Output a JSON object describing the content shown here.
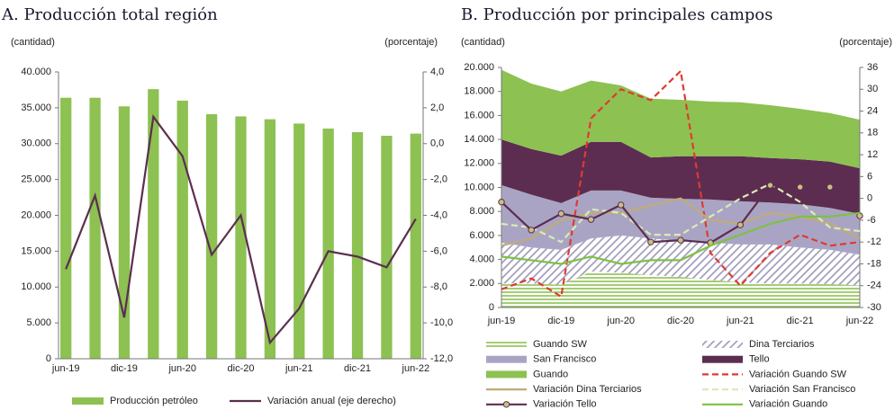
{
  "chart_data": [
    {
      "type": "bar-line",
      "title": "A. Producción total región",
      "y_label": "(cantidad)",
      "y2_label": "(porcentaje)",
      "categories": [
        "jun-19",
        null,
        "dic-19",
        null,
        "jun-20",
        null,
        "dic-20",
        null,
        "jun-21",
        null,
        "dic-21",
        null,
        "jun-22"
      ],
      "ylim": [
        0,
        40000
      ],
      "yticks": [
        0,
        {
          "value": 5000,
          "label": "5.000"
        },
        {
          "value": 10000,
          "label": "10.000"
        },
        {
          "value": 15000,
          "label": "15.000"
        },
        {
          "value": 20000,
          "label": "20.000"
        },
        {
          "value": 25000,
          "label": "25.000"
        },
        {
          "value": 30000,
          "label": "30.000"
        },
        {
          "value": 35000,
          "label": "35.000"
        },
        {
          "value": 40000,
          "label": "40.000"
        }
      ],
      "y2lim": [
        -12,
        4
      ],
      "y2ticks": [
        {
          "value": -12,
          "label": "-12,0"
        },
        {
          "value": -10,
          "label": "-10,0"
        },
        {
          "value": -8,
          "label": "-8,0"
        },
        {
          "value": -6,
          "label": "-6,0"
        },
        {
          "value": -4,
          "label": "-4,0"
        },
        {
          "value": -2,
          "label": "-2,0"
        },
        {
          "value": 0,
          "label": "0,0"
        },
        {
          "value": 2,
          "label": "2,0"
        },
        {
          "value": 4,
          "label": "4,0"
        }
      ],
      "series": [
        {
          "name": "Producción petróleo",
          "type": "bar",
          "color": "#8dc152",
          "values": [
            36400,
            36400,
            35200,
            37600,
            36000,
            34100,
            33800,
            33400,
            32800,
            32100,
            31600,
            31100,
            31400
          ]
        },
        {
          "name": "Variación anual (eje derecho)",
          "type": "line",
          "axis": "y2",
          "color": "#5b2e4f",
          "values": [
            -7.0,
            -2.9,
            -9.7,
            1.5,
            -0.7,
            -6.2,
            -4.0,
            -11.1,
            -9.2,
            -6.0,
            -6.3,
            -6.9,
            -4.2
          ]
        }
      ]
    },
    {
      "type": "stacked-area-line",
      "title": "B. Producción por principales  campos",
      "y_label": "(cantidad)",
      "y2_label": "(porcentaje)",
      "categories": [
        "jun-19",
        null,
        "dic-19",
        null,
        "jun-20",
        null,
        "dic-20",
        null,
        "jun-21",
        null,
        "dic-21",
        null,
        "jun-22"
      ],
      "ylim": [
        0,
        20000
      ],
      "yticks": [
        0,
        {
          "value": 2000,
          "label": "2.000"
        },
        {
          "value": 4000,
          "label": "4.000"
        },
        {
          "value": 6000,
          "label": "6.000"
        },
        {
          "value": 8000,
          "label": "8.000"
        },
        {
          "value": 10000,
          "label": "10.000"
        },
        {
          "value": 12000,
          "label": "12.000"
        },
        {
          "value": 14000,
          "label": "14.000"
        },
        {
          "value": 16000,
          "label": "16.000"
        },
        {
          "value": 18000,
          "label": "18.000"
        },
        {
          "value": 20000,
          "label": "20.000"
        }
      ],
      "y2lim": [
        -30,
        36
      ],
      "y2ticks": [
        -30,
        -24,
        -18,
        -12,
        -6,
        0,
        6,
        12,
        18,
        24,
        30,
        36
      ],
      "series": [
        {
          "name": "Guando SW",
          "type": "area",
          "color": "#8dc152",
          "pattern": "horizontal-lines",
          "values": [
            2000,
            2000,
            1900,
            3000,
            2900,
            2700,
            2550,
            2300,
            2100,
            2000,
            2000,
            1950,
            1850
          ]
        },
        {
          "name": "Dina Terciarios",
          "type": "area",
          "color": "#9a96b8",
          "pattern": "diagonal-hatch",
          "values": [
            3400,
            3000,
            2900,
            2750,
            3100,
            3050,
            3000,
            3100,
            3150,
            3250,
            3000,
            2850,
            2550
          ]
        },
        {
          "name": "San Francisco",
          "type": "area",
          "color": "#aaa4c4",
          "values": [
            4800,
            4400,
            3900,
            4000,
            3750,
            3400,
            3500,
            3600,
            3600,
            3500,
            3600,
            3500,
            3400
          ]
        },
        {
          "name": "Tello",
          "type": "area",
          "color": "#5c2d50",
          "values": [
            3800,
            3800,
            3950,
            4050,
            4050,
            3350,
            3550,
            3600,
            3750,
            3700,
            3750,
            3850,
            3800
          ]
        },
        {
          "name": "Guando",
          "type": "area",
          "color": "#8dc152",
          "values": [
            5800,
            5450,
            5350,
            5100,
            4700,
            4900,
            4700,
            4550,
            4500,
            4400,
            4200,
            4050,
            4050
          ]
        },
        {
          "name": "Variación Guando SW",
          "type": "line",
          "axis": "y2",
          "color": "#e03a2f",
          "dash": true,
          "values": [
            -25,
            -22,
            -27,
            22,
            30,
            27,
            35,
            -15,
            -24,
            -15,
            -10,
            -13,
            -12
          ]
        },
        {
          "name": "Variación Dina Terciarios",
          "type": "line",
          "axis": "y2",
          "color": "#c0ab7a",
          "values": [
            -13,
            -11,
            -6,
            -4,
            -4,
            -2,
            0,
            -6,
            -7,
            -4,
            -5,
            -7,
            -11
          ]
        },
        {
          "name": "Variación San Francisco",
          "type": "line",
          "axis": "y2",
          "color": "#d9ebb8",
          "dash": true,
          "values": [
            -7,
            -8,
            -12,
            -3,
            -4,
            -10,
            -10,
            -5,
            0,
            4,
            -1,
            -8,
            -9
          ]
        },
        {
          "name": "Variación Tello",
          "type": "line",
          "axis": "y2",
          "color": "#5c2d50",
          "marker_color": "#c6c27e",
          "values": [
            -1,
            -8.7,
            -4.2,
            -5.8,
            -1.8,
            -12,
            -11.5,
            -12.2,
            -7.3,
            3.6,
            3.1,
            3.1,
            -4.8
          ]
        },
        {
          "name": "Variación Guando",
          "type": "line",
          "axis": "y2",
          "color": "#7cc242",
          "values": [
            -16,
            -17,
            -18,
            -16,
            -18,
            -17,
            -17,
            -13,
            -10,
            -7,
            -5,
            -5,
            -4
          ]
        }
      ]
    }
  ]
}
